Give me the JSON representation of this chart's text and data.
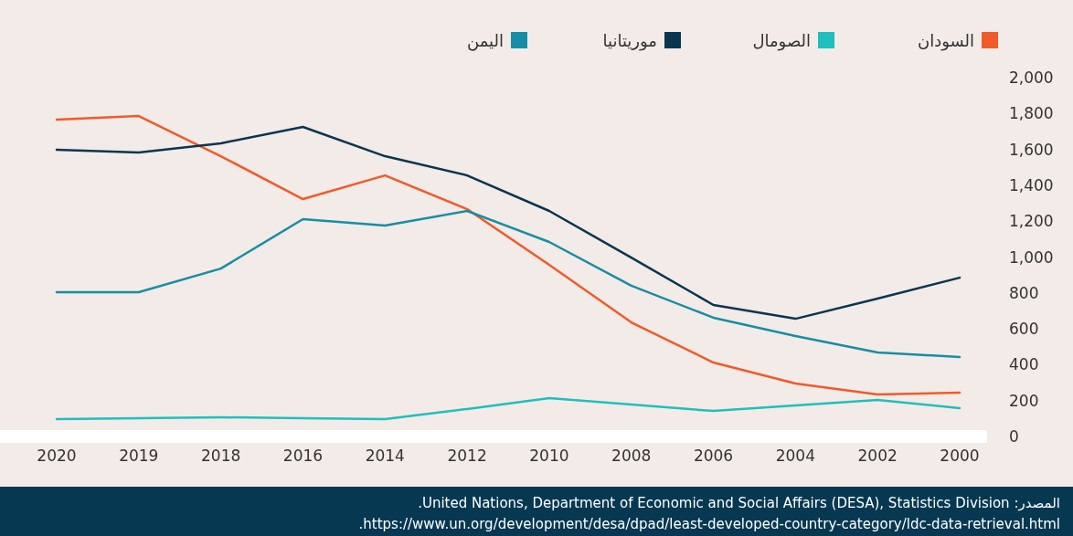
{
  "chart_data": {
    "type": "line",
    "categories": [
      "2020",
      "2019",
      "2018",
      "2016",
      "2014",
      "2012",
      "2010",
      "2008",
      "2006",
      "2004",
      "2002",
      "2000"
    ],
    "series": [
      {
        "name": "السودان",
        "color": "#f15a29",
        "values": [
          1766,
          1786,
          1562,
          1323,
          1455,
          1267,
          957,
          636,
          412,
          295,
          234,
          244
        ]
      },
      {
        "name": "الصومال",
        "color": "#1fbfbf",
        "values": [
          97,
          102,
          107,
          102,
          97,
          153,
          214,
          178,
          142,
          173,
          204,
          158
        ]
      },
      {
        "name": "موريتانيا",
        "color": "#0a3550",
        "values": [
          1598,
          1583,
          1634,
          1725,
          1562,
          1455,
          1257,
          997,
          733,
          656,
          768,
          885
        ]
      },
      {
        "name": "اليمن",
        "color": "#168ea5",
        "values": [
          804,
          804,
          936,
          1211,
          1176,
          1257,
          1084,
          840,
          662,
          560,
          468,
          443
        ]
      }
    ],
    "ylim": [
      0,
      2000
    ],
    "yticks": [
      0,
      200,
      400,
      600,
      800,
      {
        "value": 1000,
        "label": "1,000"
      },
      {
        "value": 1200,
        "label": "1,200"
      },
      {
        "value": 1400,
        "label": "1,400"
      },
      {
        "value": 1600,
        "label": "1,600"
      },
      {
        "value": 1800,
        "label": "1,800"
      },
      {
        "value": 2000,
        "label": "2,000"
      }
    ],
    "legend": "top",
    "grid": false,
    "marker": "none",
    "line_style": "solid",
    "annotations": [
      "المصدر: United Nations, Department of Economic and Social Affairs (DESA), Statistics Division.",
      "https://www.un.org/development/desa/dpad/least-developed-country-category/ldc-data-retrieval.html."
    ]
  }
}
